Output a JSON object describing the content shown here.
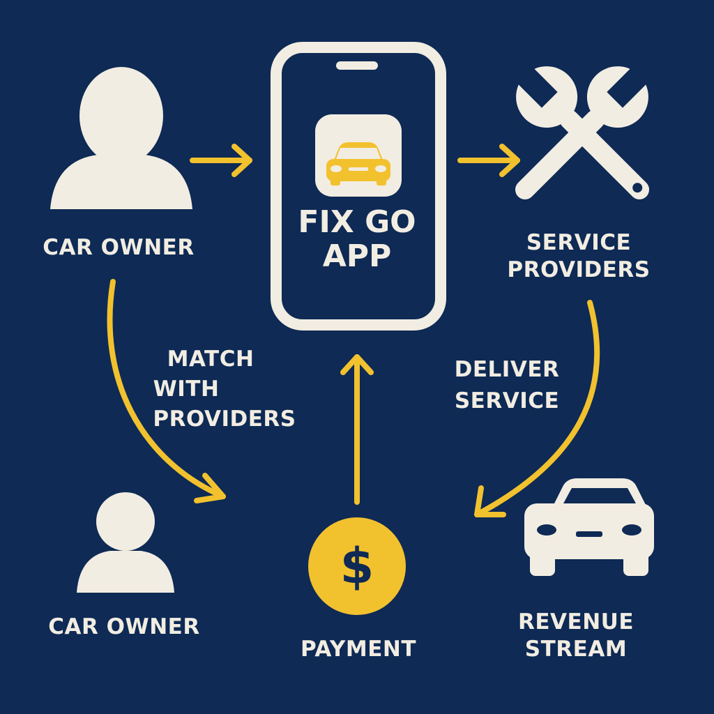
{
  "colors": {
    "background": "#0e2a55",
    "icon": "#f2ede2",
    "accent": "#f2c12e",
    "ink": "#0e2a55"
  },
  "app": {
    "title_line1": "FIX GO",
    "title_line2": "APP",
    "icon": "car-app-icon"
  },
  "nodes": {
    "car_owner_top": {
      "label": "CAR OWNER",
      "icon": "user-icon"
    },
    "service_providers": {
      "line1": "SERVICE",
      "line2": "PROVIDERS",
      "icon": "wrench-icon"
    },
    "car_owner_bottom": {
      "label": "CAR OWNER",
      "icon": "user-icon"
    },
    "payment": {
      "label": "PAYMENT",
      "icon": "dollar-coin-icon"
    },
    "revenue_stream": {
      "line1": "REVENUE",
      "line2": "STREAM",
      "icon": "car-icon"
    }
  },
  "edges": {
    "match": {
      "line1": "MATCH",
      "line2": "WITH",
      "line3": "PROVIDERS"
    },
    "deliver": {
      "line1": "DELIVER",
      "line2": "SERVICE"
    }
  }
}
